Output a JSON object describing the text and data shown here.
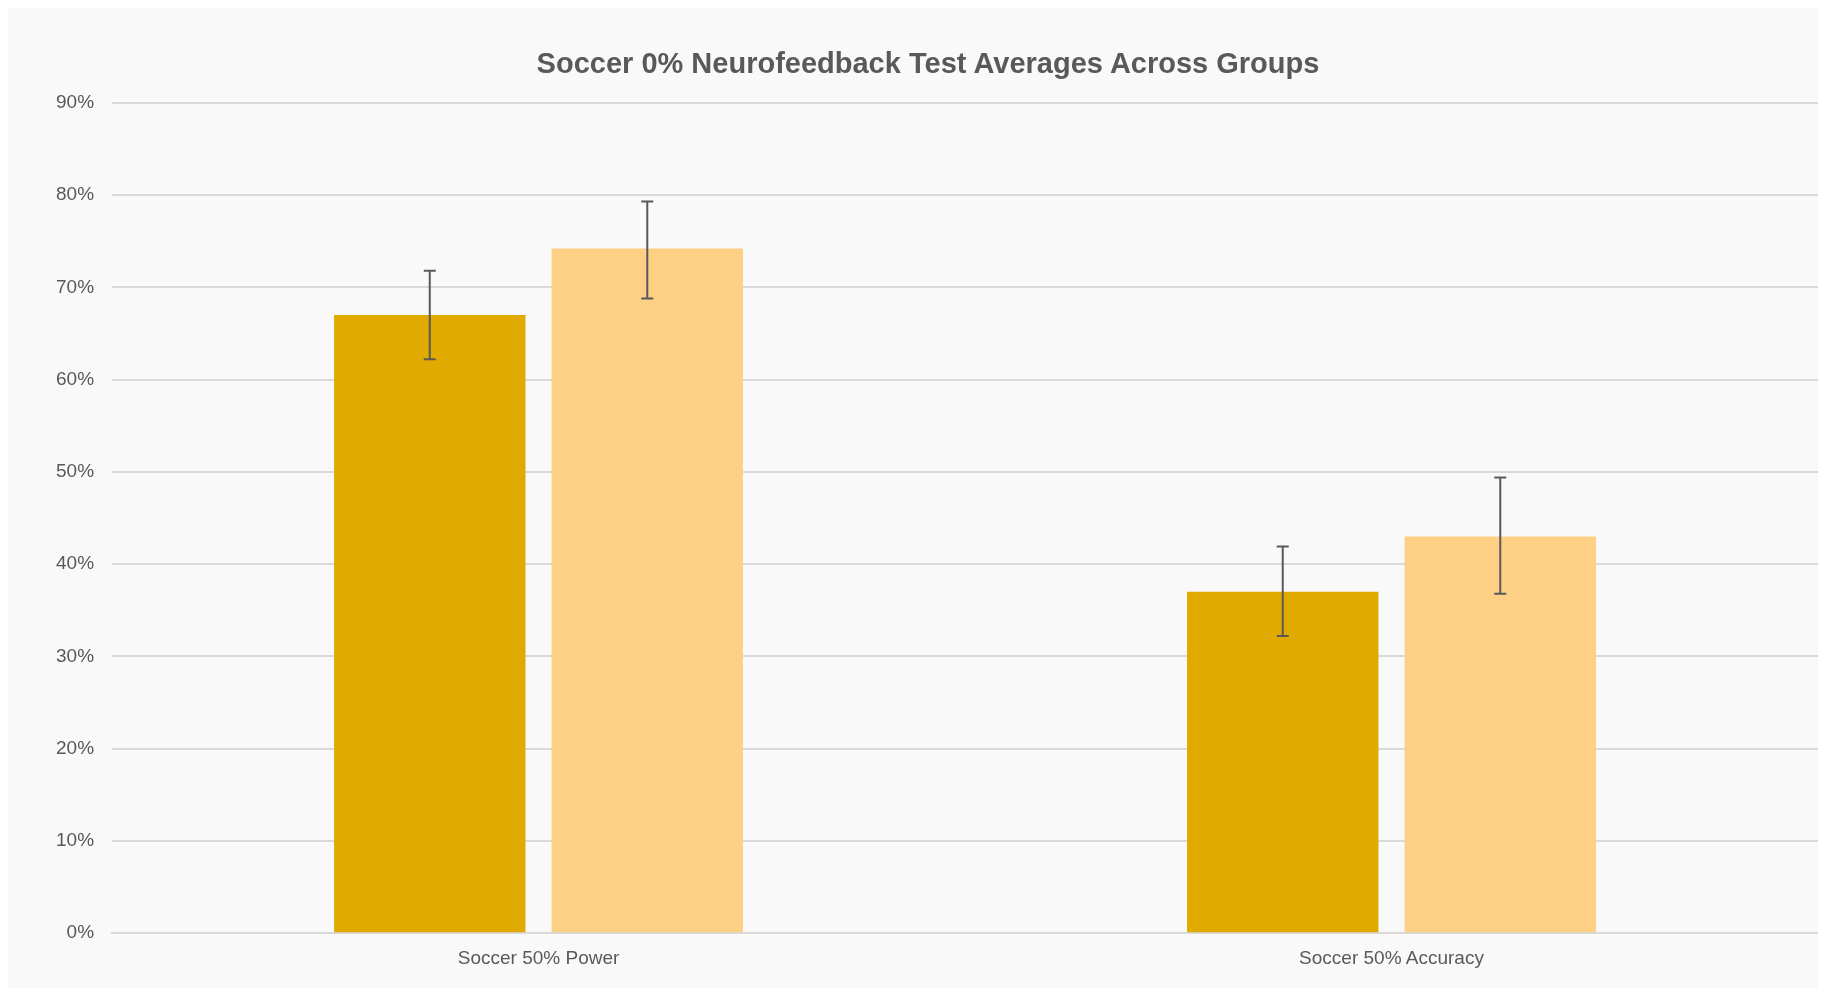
{
  "chart_data": {
    "type": "bar",
    "title": "Soccer 0% Neurofeedback Test Averages Across Groups",
    "categories": [
      "Soccer 50% Power",
      "Soccer 50% Accuracy"
    ],
    "series": [
      {
        "color": "#e0aa00",
        "values": [
          67,
          37
        ],
        "errors": [
          [
            62.2,
            71.8
          ],
          [
            32.2,
            41.9
          ]
        ]
      },
      {
        "color": "#fed086",
        "values": [
          74.2,
          43
        ],
        "errors": [
          [
            68.8,
            79.3
          ],
          [
            36.8,
            49.4
          ]
        ]
      }
    ],
    "ylim": [
      0,
      90
    ],
    "yticks": [
      {
        "value": 0,
        "label": "0%"
      },
      {
        "value": 10,
        "label": "10%"
      },
      {
        "value": 20,
        "label": "20%"
      },
      {
        "value": 30,
        "label": "30%"
      },
      {
        "value": 40,
        "label": "40%"
      },
      {
        "value": 50,
        "label": "50%"
      },
      {
        "value": 60,
        "label": "60%"
      },
      {
        "value": 70,
        "label": "70%"
      },
      {
        "value": 80,
        "label": "80%"
      },
      {
        "value": 90,
        "label": "90%"
      }
    ],
    "grid": "y",
    "legend": false
  }
}
